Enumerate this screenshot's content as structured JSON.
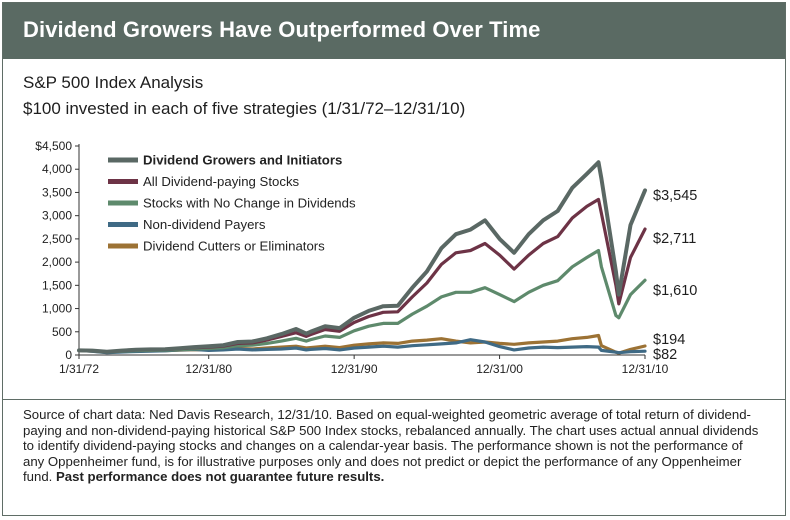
{
  "header": {
    "title": "Dividend Growers Have Outperformed Over Time"
  },
  "subtitle": {
    "line1": "S&P 500 Index Analysis",
    "line2": "$100 invested in each of five strategies (1/31/72–12/31/10)"
  },
  "chart_data": {
    "type": "line",
    "title": "Dividend Growers Have Outperformed Over Time",
    "ylim": [
      0,
      4500
    ],
    "y_ticks": [
      0,
      500,
      1000,
      1500,
      2000,
      2500,
      3000,
      3500,
      4000,
      4500
    ],
    "y_tick_labels": [
      "0",
      "500",
      "1,000",
      "1,500",
      "2,000",
      "2,500",
      "3,000",
      "3,500",
      "4,000",
      "$4,500"
    ],
    "x_tick_labels": [
      "1/31/72",
      "12/31/80",
      "12/31/90",
      "12/31/00",
      "12/31/10"
    ],
    "x_ticks": [
      1972.08,
      1981,
      1991,
      2001,
      2011
    ],
    "grid": false,
    "legend_position": "top-left",
    "series": [
      {
        "name": "Dividend Growers and Initiators",
        "color": "#5a6864",
        "bold": true,
        "end_label": "$3,545",
        "x": [
          1972.08,
          1973,
          1974,
          1975,
          1976,
          1977,
          1978,
          1979,
          1980,
          1981,
          1982,
          1983,
          1984,
          1985,
          1986,
          1987,
          1987.7,
          1988,
          1989,
          1990,
          1991,
          1992,
          1993,
          1994,
          1995,
          1996,
          1997,
          1998,
          1999,
          2000,
          2001,
          2002,
          2003,
          2004,
          2005,
          2006,
          2007,
          2007.8,
          2008,
          2009,
          2009.2,
          2010,
          2011
        ],
        "y": [
          100,
          95,
          70,
          95,
          115,
          120,
          125,
          145,
          170,
          190,
          210,
          280,
          290,
          360,
          450,
          560,
          460,
          500,
          620,
          580,
          800,
          950,
          1050,
          1060,
          1450,
          1800,
          2300,
          2600,
          2700,
          2900,
          2500,
          2200,
          2600,
          2900,
          3100,
          3600,
          3900,
          4150,
          3800,
          1800,
          1300,
          2800,
          3545
        ]
      },
      {
        "name": "All Dividend-paying Stocks",
        "color": "#6d3346",
        "bold": false,
        "end_label": "$2,711",
        "x": [
          1972.08,
          1973,
          1974,
          1975,
          1976,
          1977,
          1978,
          1979,
          1980,
          1981,
          1982,
          1983,
          1984,
          1985,
          1986,
          1987,
          1987.7,
          1988,
          1989,
          1990,
          1991,
          1992,
          1993,
          1994,
          1995,
          1996,
          1997,
          1998,
          1999,
          2000,
          2001,
          2002,
          2003,
          2004,
          2005,
          2006,
          2007,
          2007.8,
          2008,
          2009,
          2009.2,
          2010,
          2011
        ],
        "y": [
          100,
          95,
          70,
          90,
          110,
          115,
          120,
          135,
          155,
          170,
          190,
          250,
          260,
          320,
          400,
          480,
          400,
          440,
          550,
          510,
          700,
          830,
          920,
          930,
          1250,
          1550,
          1950,
          2200,
          2250,
          2400,
          2150,
          1850,
          2150,
          2400,
          2550,
          2950,
          3200,
          3350,
          3050,
          1500,
          1100,
          2100,
          2711
        ]
      },
      {
        "name": "Stocks with No Change in Dividends",
        "color": "#5e8a6c",
        "bold": false,
        "end_label": "$1,610",
        "x": [
          1972.08,
          1973,
          1974,
          1975,
          1976,
          1977,
          1978,
          1979,
          1980,
          1981,
          1982,
          1983,
          1984,
          1985,
          1986,
          1987,
          1987.7,
          1988,
          1989,
          1990,
          1991,
          1992,
          1993,
          1994,
          1995,
          1996,
          1997,
          1998,
          1999,
          2000,
          2001,
          2002,
          2003,
          2004,
          2005,
          2006,
          2007,
          2007.8,
          2008,
          2009,
          2009.2,
          2010,
          2011
        ],
        "y": [
          100,
          90,
          65,
          80,
          95,
          100,
          105,
          115,
          130,
          140,
          155,
          200,
          210,
          250,
          300,
          360,
          300,
          330,
          410,
          380,
          520,
          620,
          680,
          680,
          880,
          1050,
          1250,
          1350,
          1350,
          1450,
          1300,
          1150,
          1350,
          1500,
          1600,
          1900,
          2100,
          2250,
          1900,
          850,
          800,
          1300,
          1610
        ]
      },
      {
        "name": "Non-dividend Payers",
        "color": "#3f6a85",
        "bold": false,
        "end_label": "$82",
        "x": [
          1972.08,
          1973,
          1974,
          1975,
          1976,
          1977,
          1978,
          1979,
          1980,
          1981,
          1982,
          1983,
          1984,
          1985,
          1986,
          1987,
          1987.7,
          1988,
          1989,
          1990,
          1991,
          1992,
          1993,
          1994,
          1995,
          1996,
          1997,
          1998,
          1999,
          2000,
          2001,
          2002,
          2003,
          2004,
          2005,
          2006,
          2007,
          2007.8,
          2008,
          2009,
          2009.2,
          2010,
          2011
        ],
        "y": [
          100,
          80,
          50,
          65,
          75,
          85,
          90,
          110,
          120,
          100,
          110,
          130,
          110,
          120,
          130,
          150,
          110,
          120,
          140,
          110,
          150,
          170,
          190,
          170,
          200,
          220,
          240,
          260,
          330,
          280,
          180,
          110,
          150,
          170,
          160,
          170,
          180,
          170,
          100,
          60,
          50,
          70,
          82
        ]
      },
      {
        "name": "Dividend Cutters or Eliminators",
        "color": "#9c7234",
        "bold": false,
        "end_label": "$194",
        "x": [
          1972.08,
          1973,
          1974,
          1975,
          1976,
          1977,
          1978,
          1979,
          1980,
          1981,
          1982,
          1983,
          1984,
          1985,
          1986,
          1987,
          1987.7,
          1988,
          1989,
          1990,
          1991,
          1992,
          1993,
          1994,
          1995,
          1996,
          1997,
          1998,
          1999,
          2000,
          2001,
          2002,
          2003,
          2004,
          2005,
          2006,
          2007,
          2007.8,
          2008,
          2009,
          2009.2,
          2010,
          2011
        ],
        "y": [
          100,
          85,
          55,
          70,
          85,
          90,
          95,
          105,
          115,
          110,
          120,
          140,
          130,
          150,
          170,
          190,
          150,
          160,
          190,
          160,
          210,
          240,
          260,
          250,
          300,
          320,
          350,
          300,
          260,
          280,
          250,
          230,
          260,
          280,
          300,
          350,
          380,
          420,
          200,
          60,
          40,
          120,
          194
        ]
      }
    ]
  },
  "source": {
    "text": "Source of chart data: Ned Davis Research, 12/31/10. Based on equal-weighted geometric average of total return of dividend-paying and non-dividend-paying historical S&P 500 Index stocks, rebalanced annually. The chart uses actual annual dividends to identify dividend-paying stocks and changes on a calendar-year basis. The performance shown is not the performance of any Oppenheimer fund, is for illustrative purposes only and does not predict or depict the performance of any Oppenheimer fund.",
    "bold_text": "Past performance does not guarantee future results."
  }
}
